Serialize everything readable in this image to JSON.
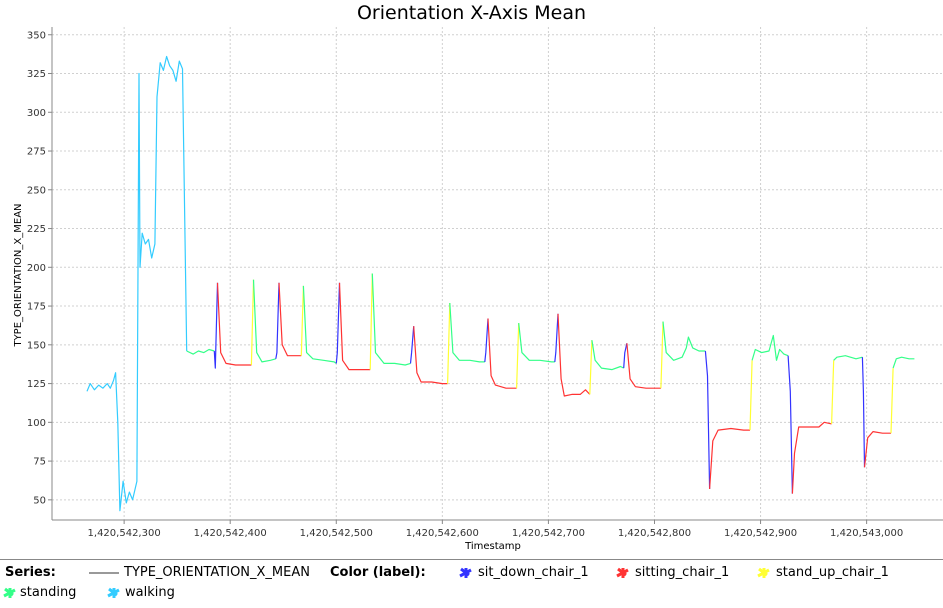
{
  "chart_data": {
    "type": "line",
    "title": "Orientation X-Axis Mean",
    "xlabel": "Timestamp",
    "ylabel": "TYPE_ORIENTATION_X_MEAN",
    "xlim": [
      1420542232,
      1420543072
    ],
    "ylim": [
      37,
      355
    ],
    "x_ticks": [
      1420542300,
      1420542400,
      1420542500,
      1420542600,
      1420542700,
      1420542800,
      1420542900,
      1420543000
    ],
    "x_tick_labels": [
      "1,420,542,300",
      "1,420,542,400",
      "1,420,542,500",
      "1,420,542,600",
      "1,420,542,700",
      "1,420,542,800",
      "1,420,542,900",
      "1,420,543,000"
    ],
    "y_ticks": [
      50,
      75,
      100,
      125,
      150,
      175,
      200,
      225,
      250,
      275,
      300,
      325,
      350
    ],
    "y_tick_labels": [
      "50",
      "75",
      "100",
      "125",
      "150",
      "175",
      "200",
      "225",
      "250",
      "275",
      "300",
      "325",
      "350"
    ],
    "grid": true,
    "legend_position": "bottom",
    "series_legend_label": "Series:",
    "series_legend_name": "TYPE_ORIENTATION_X_MEAN",
    "color_legend_label": "Color (label):",
    "labels": [
      {
        "name": "sit_down_chair_1",
        "color": "#3333ff"
      },
      {
        "name": "sitting_chair_1",
        "color": "#ff3333"
      },
      {
        "name": "stand_up_chair_1",
        "color": "#ffff33"
      },
      {
        "name": "standing",
        "color": "#33ff88"
      },
      {
        "name": "walking",
        "color": "#33ccff"
      }
    ],
    "segments": [
      {
        "label": "walking",
        "points": [
          [
            1420542265,
            120
          ],
          [
            1420542268,
            125
          ],
          [
            1420542272,
            121
          ],
          [
            1420542276,
            124
          ],
          [
            1420542280,
            122
          ],
          [
            1420542284,
            125
          ],
          [
            1420542287,
            122
          ],
          [
            1420542290,
            127
          ],
          [
            1420542292,
            132
          ],
          [
            1420542294,
            100
          ],
          [
            1420542296,
            43
          ],
          [
            1420542299,
            62
          ],
          [
            1420542302,
            48
          ],
          [
            1420542305,
            55
          ],
          [
            1420542308,
            50
          ],
          [
            1420542312,
            62
          ],
          [
            1420542314,
            325
          ],
          [
            1420542315,
            200
          ],
          [
            1420542317,
            222
          ],
          [
            1420542320,
            215
          ],
          [
            1420542323,
            218
          ],
          [
            1420542326,
            206
          ],
          [
            1420542329,
            215
          ],
          [
            1420542331,
            310
          ],
          [
            1420542334,
            332
          ],
          [
            1420542337,
            327
          ],
          [
            1420542340,
            336
          ],
          [
            1420542343,
            330
          ],
          [
            1420542346,
            327
          ],
          [
            1420542349,
            320
          ],
          [
            1420542352,
            333
          ],
          [
            1420542355,
            328
          ],
          [
            1420542359,
            146
          ]
        ]
      },
      {
        "label": "standing",
        "points": [
          [
            1420542359,
            146
          ],
          [
            1420542365,
            144
          ],
          [
            1420542370,
            146
          ],
          [
            1420542375,
            145
          ],
          [
            1420542380,
            147
          ],
          [
            1420542385,
            146
          ]
        ]
      },
      {
        "label": "sit_down_chair_1",
        "points": [
          [
            1420542385,
            146
          ],
          [
            1420542386,
            135
          ],
          [
            1420542388,
            190
          ]
        ]
      },
      {
        "label": "sitting_chair_1",
        "points": [
          [
            1420542388,
            190
          ],
          [
            1420542391,
            145
          ],
          [
            1420542396,
            138
          ],
          [
            1420542405,
            137
          ],
          [
            1420542420,
            137
          ]
        ]
      },
      {
        "label": "stand_up_chair_1",
        "points": [
          [
            1420542420,
            137
          ],
          [
            1420542422,
            192
          ]
        ]
      },
      {
        "label": "standing",
        "points": [
          [
            1420542422,
            192
          ],
          [
            1420542425,
            145
          ],
          [
            1420542430,
            139
          ],
          [
            1420542438,
            140
          ],
          [
            1420542443,
            141
          ]
        ]
      },
      {
        "label": "sit_down_chair_1",
        "points": [
          [
            1420542443,
            141
          ],
          [
            1420542444,
            145
          ],
          [
            1420542446,
            190
          ]
        ]
      },
      {
        "label": "sitting_chair_1",
        "points": [
          [
            1420542446,
            190
          ],
          [
            1420542449,
            150
          ],
          [
            1420542454,
            143
          ],
          [
            1420542460,
            143
          ],
          [
            1420542467,
            143
          ]
        ]
      },
      {
        "label": "stand_up_chair_1",
        "points": [
          [
            1420542467,
            143
          ],
          [
            1420542469,
            188
          ]
        ]
      },
      {
        "label": "standing",
        "points": [
          [
            1420542469,
            188
          ],
          [
            1420542472,
            145
          ],
          [
            1420542478,
            141
          ],
          [
            1420542488,
            140
          ],
          [
            1420542498,
            139
          ],
          [
            1420542500,
            138
          ]
        ]
      },
      {
        "label": "sit_down_chair_1",
        "points": [
          [
            1420542500,
            138
          ],
          [
            1420542501,
            145
          ],
          [
            1420542503,
            190
          ]
        ]
      },
      {
        "label": "sitting_chair_1",
        "points": [
          [
            1420542503,
            190
          ],
          [
            1420542506,
            140
          ],
          [
            1420542512,
            134
          ],
          [
            1420542522,
            134
          ],
          [
            1420542532,
            134
          ]
        ]
      },
      {
        "label": "stand_up_chair_1",
        "points": [
          [
            1420542532,
            134
          ],
          [
            1420542534,
            196
          ]
        ]
      },
      {
        "label": "standing",
        "points": [
          [
            1420542534,
            196
          ],
          [
            1420542537,
            145
          ],
          [
            1420542545,
            138
          ],
          [
            1420542555,
            138
          ],
          [
            1420542565,
            137
          ],
          [
            1420542570,
            138
          ]
        ]
      },
      {
        "label": "sit_down_chair_1",
        "points": [
          [
            1420542570,
            138
          ],
          [
            1420542571,
            145
          ],
          [
            1420542573,
            162
          ]
        ]
      },
      {
        "label": "sitting_chair_1",
        "points": [
          [
            1420542573,
            162
          ],
          [
            1420542576,
            132
          ],
          [
            1420542580,
            126
          ],
          [
            1420542590,
            126
          ],
          [
            1420542600,
            125
          ],
          [
            1420542605,
            125
          ]
        ]
      },
      {
        "label": "stand_up_chair_1",
        "points": [
          [
            1420542605,
            125
          ],
          [
            1420542607,
            177
          ]
        ]
      },
      {
        "label": "standing",
        "points": [
          [
            1420542607,
            177
          ],
          [
            1420542610,
            145
          ],
          [
            1420542616,
            140
          ],
          [
            1420542626,
            140
          ],
          [
            1420542635,
            139
          ],
          [
            1420542640,
            139
          ]
        ]
      },
      {
        "label": "sit_down_chair_1",
        "points": [
          [
            1420542640,
            139
          ],
          [
            1420542641,
            145
          ],
          [
            1420542643,
            167
          ]
        ]
      },
      {
        "label": "sitting_chair_1",
        "points": [
          [
            1420542643,
            167
          ],
          [
            1420542646,
            130
          ],
          [
            1420542650,
            124
          ],
          [
            1420542660,
            122
          ],
          [
            1420542670,
            122
          ]
        ]
      },
      {
        "label": "stand_up_chair_1",
        "points": [
          [
            1420542670,
            122
          ],
          [
            1420542672,
            164
          ]
        ]
      },
      {
        "label": "standing",
        "points": [
          [
            1420542672,
            164
          ],
          [
            1420542675,
            145
          ],
          [
            1420542682,
            140
          ],
          [
            1420542692,
            140
          ],
          [
            1420542703,
            139
          ],
          [
            1420542706,
            139
          ]
        ]
      },
      {
        "label": "sit_down_chair_1",
        "points": [
          [
            1420542706,
            139
          ],
          [
            1420542707,
            145
          ],
          [
            1420542709,
            170
          ]
        ]
      },
      {
        "label": "sitting_chair_1",
        "points": [
          [
            1420542709,
            170
          ],
          [
            1420542712,
            128
          ],
          [
            1420542715,
            117
          ],
          [
            1420542722,
            118
          ],
          [
            1420542730,
            118
          ],
          [
            1420542735,
            121
          ],
          [
            1420542739,
            118
          ]
        ]
      },
      {
        "label": "stand_up_chair_1",
        "points": [
          [
            1420542739,
            118
          ],
          [
            1420542741,
            153
          ]
        ]
      },
      {
        "label": "standing",
        "points": [
          [
            1420542741,
            153
          ],
          [
            1420542744,
            140
          ],
          [
            1420542750,
            135
          ],
          [
            1420542760,
            134
          ],
          [
            1420542768,
            136
          ],
          [
            1420542771,
            135
          ]
        ]
      },
      {
        "label": "sit_down_chair_1",
        "points": [
          [
            1420542771,
            135
          ],
          [
            1420542772,
            145
          ],
          [
            1420542774,
            151
          ]
        ]
      },
      {
        "label": "sitting_chair_1",
        "points": [
          [
            1420542774,
            151
          ],
          [
            1420542777,
            128
          ],
          [
            1420542782,
            123
          ],
          [
            1420542792,
            122
          ],
          [
            1420542802,
            122
          ],
          [
            1420542806,
            122
          ]
        ]
      },
      {
        "label": "stand_up_chair_1",
        "points": [
          [
            1420542806,
            122
          ],
          [
            1420542808,
            165
          ]
        ]
      },
      {
        "label": "standing",
        "points": [
          [
            1420542808,
            165
          ],
          [
            1420542811,
            145
          ],
          [
            1420542818,
            140
          ],
          [
            1420542826,
            142
          ],
          [
            1420542830,
            148
          ],
          [
            1420542832,
            155
          ],
          [
            1420542836,
            148
          ],
          [
            1420542842,
            146
          ],
          [
            1420542848,
            146
          ]
        ]
      },
      {
        "label": "sit_down_chair_1",
        "points": [
          [
            1420542848,
            146
          ],
          [
            1420542850,
            130
          ],
          [
            1420542852,
            57
          ]
        ]
      },
      {
        "label": "sitting_chair_1",
        "points": [
          [
            1420542852,
            57
          ],
          [
            1420542855,
            88
          ],
          [
            1420542860,
            95
          ],
          [
            1420542872,
            96
          ],
          [
            1420542884,
            95
          ],
          [
            1420542890,
            95
          ]
        ]
      },
      {
        "label": "stand_up_chair_1",
        "points": [
          [
            1420542890,
            95
          ],
          [
            1420542892,
            140
          ]
        ]
      },
      {
        "label": "standing",
        "points": [
          [
            1420542892,
            140
          ],
          [
            1420542895,
            147
          ],
          [
            1420542901,
            145
          ],
          [
            1420542908,
            146
          ],
          [
            1420542912,
            156
          ],
          [
            1420542915,
            140
          ],
          [
            1420542918,
            147
          ],
          [
            1420542922,
            144
          ],
          [
            1420542926,
            143
          ]
        ]
      },
      {
        "label": "sit_down_chair_1",
        "points": [
          [
            1420542926,
            143
          ],
          [
            1420542928,
            120
          ],
          [
            1420542930,
            54
          ]
        ]
      },
      {
        "label": "sitting_chair_1",
        "points": [
          [
            1420542930,
            54
          ],
          [
            1420542932,
            80
          ],
          [
            1420542936,
            97
          ],
          [
            1420542945,
            97
          ],
          [
            1420542955,
            97
          ],
          [
            1420542960,
            100
          ],
          [
            1420542967,
            99
          ]
        ]
      },
      {
        "label": "stand_up_chair_1",
        "points": [
          [
            1420542967,
            99
          ],
          [
            1420542969,
            140
          ]
        ]
      },
      {
        "label": "standing",
        "points": [
          [
            1420542969,
            140
          ],
          [
            1420542972,
            142
          ],
          [
            1420542980,
            143
          ],
          [
            1420542990,
            141
          ],
          [
            1420542996,
            142
          ]
        ]
      },
      {
        "label": "sit_down_chair_1",
        "points": [
          [
            1420542996,
            142
          ],
          [
            1420542997,
            120
          ],
          [
            1420542998,
            71
          ]
        ]
      },
      {
        "label": "sitting_chair_1",
        "points": [
          [
            1420542998,
            71
          ],
          [
            1420543001,
            90
          ],
          [
            1420543006,
            94
          ],
          [
            1420543015,
            93
          ],
          [
            1420543023,
            93
          ]
        ]
      },
      {
        "label": "stand_up_chair_1",
        "points": [
          [
            1420543023,
            93
          ],
          [
            1420543025,
            135
          ]
        ]
      },
      {
        "label": "standing",
        "points": [
          [
            1420543025,
            135
          ],
          [
            1420543028,
            141
          ],
          [
            1420543033,
            142
          ],
          [
            1420543040,
            141
          ],
          [
            1420543045,
            141
          ]
        ]
      }
    ]
  }
}
